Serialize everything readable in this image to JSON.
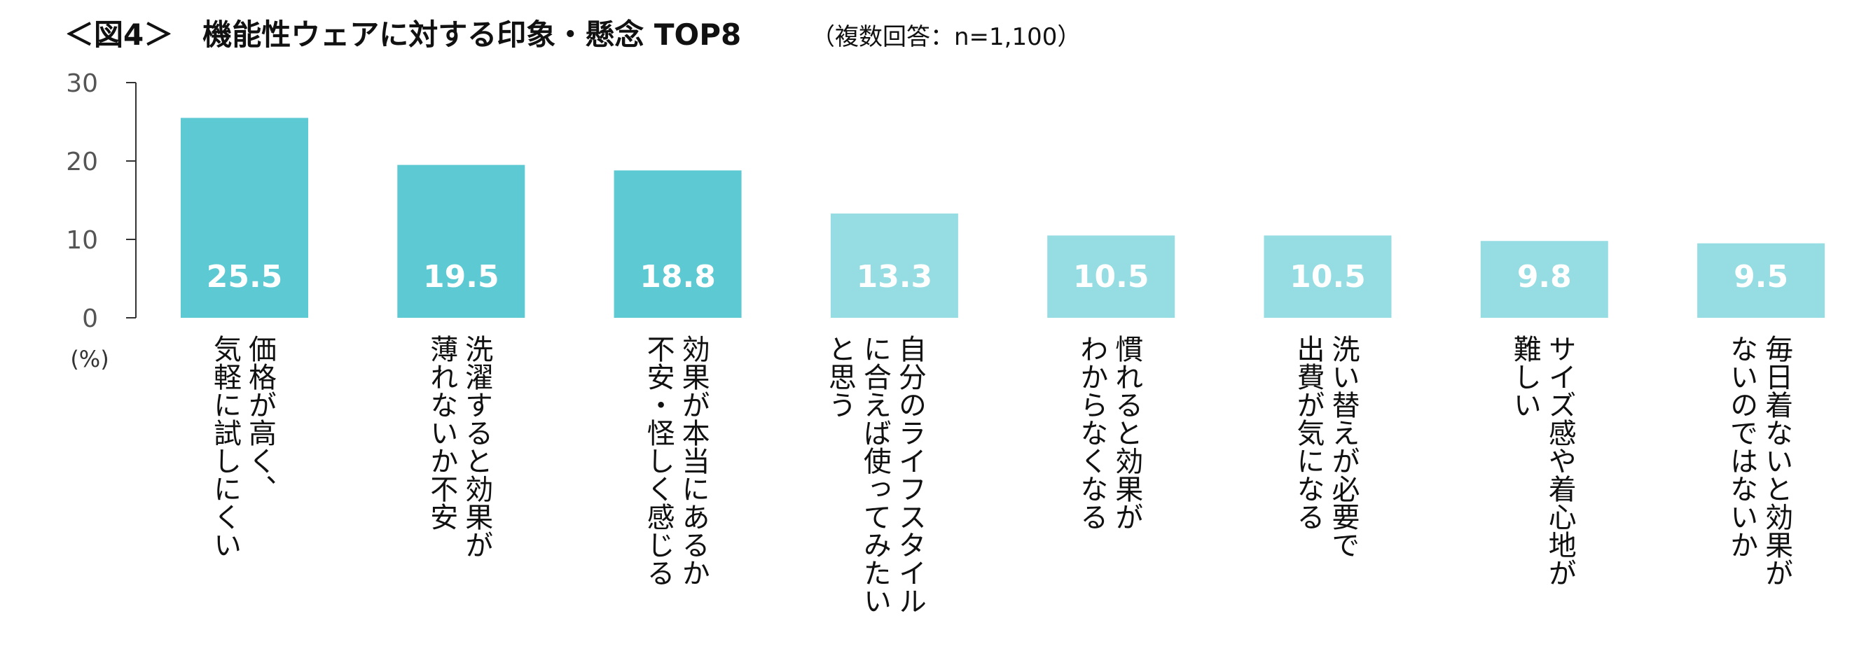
{
  "title": {
    "main": "＜図4＞　機能性ウェアに対する印象・懸念 TOP8",
    "sub": "（複数回答：n=1,100）"
  },
  "colors": {
    "bar_dark": "#5dc9d2",
    "bar_light": "#96dde3",
    "value_label": "#ffffff",
    "axis": "#333333"
  },
  "chart_data": {
    "type": "bar",
    "title": "＜図4＞　機能性ウェアに対する印象・懸念 TOP8",
    "subtitle": "（複数回答：n=1,100）",
    "ylabel": "(%)",
    "ylim": [
      0,
      30
    ],
    "yticks": [
      0,
      10,
      20,
      30
    ],
    "grid": false,
    "categories": [
      [
        "価格が高く、",
        "気軽に試しにくい"
      ],
      [
        "洗濯すると効果が",
        "薄れないか不安"
      ],
      [
        "効果が本当にあるか",
        "不安・怪しく感じる"
      ],
      [
        "自分のライフスタイル",
        "に合えば使ってみたい",
        "と思う"
      ],
      [
        "慣れると効果が",
        "わからなくなる"
      ],
      [
        "洗い替えが必要で",
        "出費が気になる"
      ],
      [
        "サイズ感や着心地が",
        "難しい"
      ],
      [
        "毎日着ないと効果が",
        "ないのではないか"
      ]
    ],
    "values": [
      25.5,
      19.5,
      18.8,
      13.3,
      10.5,
      10.5,
      9.8,
      9.5
    ],
    "value_labels": [
      "25.5",
      "19.5",
      "18.8",
      "13.3",
      "10.5",
      "10.5",
      "9.8",
      "9.5"
    ],
    "highlight_top": 3
  }
}
